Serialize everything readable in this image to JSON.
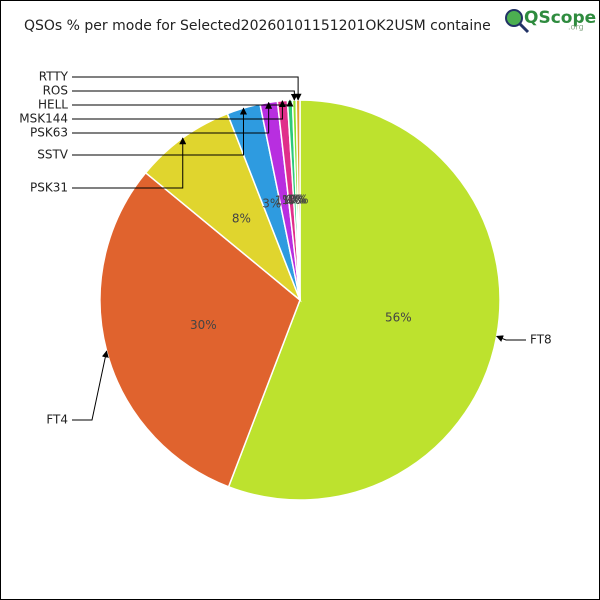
{
  "chart_data": {
    "type": "pie",
    "title": "QSOs % per mode for Selected20260101151201OK2USM containe",
    "logo": "QScope",
    "logo_suffix": ".org",
    "categories": [
      "FT8",
      "FT4",
      "PSK31",
      "SSTV",
      "PSK63",
      "MSK144",
      "HELL",
      "ROS",
      "RTTY"
    ],
    "values": [
      55.7,
      30.1,
      8.1,
      2.7,
      1.4,
      0.8,
      0.4,
      0.3,
      0.3
    ],
    "value_labels": [
      "56%",
      "30%",
      "8%",
      "3%",
      "1%",
      "1%",
      "0%",
      "0%",
      "0%"
    ],
    "colors": [
      "#bde22e",
      "#e0632e",
      "#e0d52e",
      "#2e9be0",
      "#b82ee0",
      "#e02e8a",
      "#2ec87a",
      "#8ae02e",
      "#e0a02e"
    ]
  }
}
